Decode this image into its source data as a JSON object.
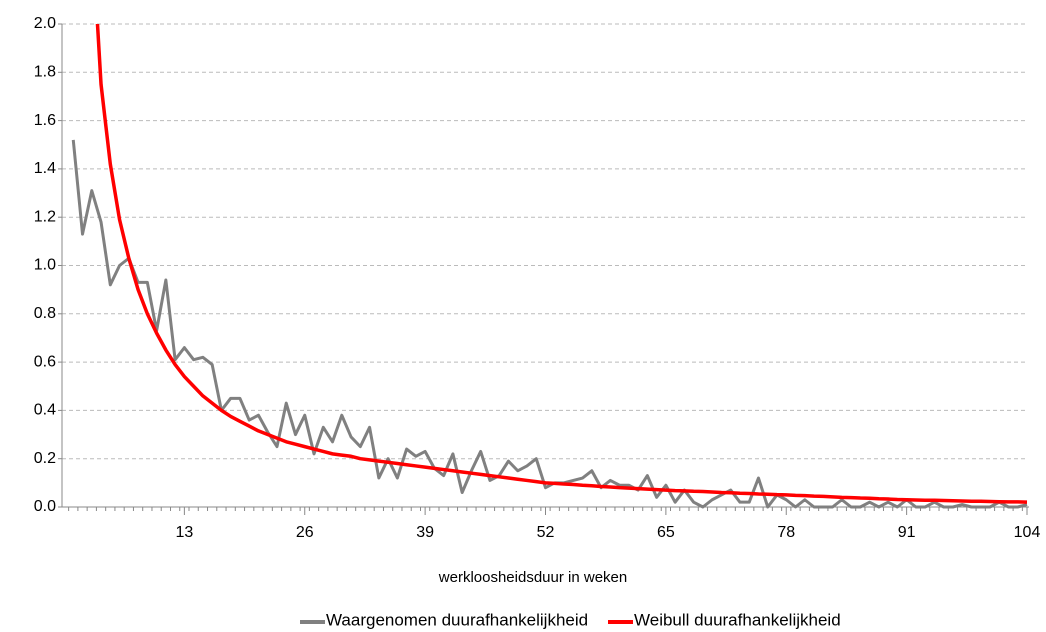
{
  "chart_data": {
    "type": "line",
    "xlabel": "werkloosheidsduur in weken",
    "x": [
      1,
      2,
      3,
      4,
      5,
      6,
      7,
      8,
      9,
      10,
      11,
      12,
      13,
      14,
      15,
      16,
      17,
      18,
      19,
      20,
      21,
      22,
      23,
      24,
      25,
      26,
      27,
      28,
      29,
      30,
      31,
      32,
      33,
      34,
      35,
      36,
      37,
      38,
      39,
      40,
      41,
      42,
      43,
      44,
      45,
      46,
      47,
      48,
      49,
      50,
      51,
      52,
      53,
      54,
      55,
      56,
      57,
      58,
      59,
      60,
      61,
      62,
      63,
      64,
      65,
      66,
      67,
      68,
      69,
      70,
      71,
      72,
      73,
      74,
      75,
      76,
      77,
      78,
      79,
      80,
      81,
      82,
      83,
      84,
      85,
      86,
      87,
      88,
      89,
      90,
      91,
      92,
      93,
      94,
      95,
      96,
      97,
      98,
      99,
      100,
      101,
      102,
      103,
      104
    ],
    "series": [
      {
        "name": "Waargenomen duurafhankelijkheid",
        "color": "#808080",
        "values": [
          1.52,
          1.13,
          1.31,
          1.18,
          0.92,
          1.0,
          1.03,
          0.93,
          0.93,
          0.73,
          0.94,
          0.61,
          0.66,
          0.61,
          0.62,
          0.59,
          0.4,
          0.45,
          0.45,
          0.36,
          0.38,
          0.31,
          0.25,
          0.43,
          0.3,
          0.38,
          0.22,
          0.33,
          0.27,
          0.38,
          0.29,
          0.25,
          0.33,
          0.12,
          0.2,
          0.12,
          0.24,
          0.21,
          0.23,
          0.16,
          0.13,
          0.22,
          0.06,
          0.15,
          0.23,
          0.11,
          0.13,
          0.19,
          0.15,
          0.17,
          0.2,
          0.08,
          0.1,
          0.1,
          0.11,
          0.12,
          0.15,
          0.08,
          0.11,
          0.09,
          0.09,
          0.07,
          0.13,
          0.04,
          0.09,
          0.02,
          0.07,
          0.02,
          0.0,
          0.03,
          0.05,
          0.07,
          0.02,
          0.02,
          0.12,
          0.0,
          0.05,
          0.03,
          0.0,
          0.03,
          0.0,
          0.0,
          0.0,
          0.03,
          0.0,
          0.0,
          0.02,
          0.0,
          0.02,
          0.0,
          0.03,
          0.0,
          0.0,
          0.02,
          0.0,
          0.0,
          0.01,
          0.0,
          0.0,
          0.0,
          0.02,
          0.0,
          0.0,
          0.01
        ]
      },
      {
        "name": "Weibull duurafhankelijkheid",
        "color": "#ff0000",
        "values": [
          null,
          null,
          2.4,
          1.75,
          1.42,
          1.19,
          1.03,
          0.9,
          0.8,
          0.72,
          0.65,
          0.59,
          0.54,
          0.5,
          0.46,
          0.43,
          0.4,
          0.375,
          0.355,
          0.335,
          0.315,
          0.3,
          0.285,
          0.27,
          0.26,
          0.25,
          0.24,
          0.23,
          0.22,
          0.215,
          0.21,
          0.2,
          0.195,
          0.19,
          0.185,
          0.18,
          0.175,
          0.17,
          0.165,
          0.16,
          0.155,
          0.15,
          0.145,
          0.14,
          0.135,
          0.13,
          0.125,
          0.12,
          0.115,
          0.11,
          0.105,
          0.1,
          0.098,
          0.095,
          0.093,
          0.09,
          0.088,
          0.085,
          0.083,
          0.08,
          0.078,
          0.076,
          0.074,
          0.072,
          0.07,
          0.068,
          0.067,
          0.065,
          0.064,
          0.062,
          0.06,
          0.059,
          0.057,
          0.056,
          0.054,
          0.053,
          0.051,
          0.05,
          0.048,
          0.047,
          0.045,
          0.044,
          0.042,
          0.04,
          0.039,
          0.037,
          0.036,
          0.034,
          0.033,
          0.031,
          0.03,
          0.029,
          0.028,
          0.028,
          0.027,
          0.026,
          0.025,
          0.024,
          0.024,
          0.023,
          0.022,
          0.021,
          0.021,
          0.02
        ]
      }
    ],
    "xlim": [
      0,
      104
    ],
    "xticks": [
      13,
      26,
      39,
      52,
      65,
      78,
      91,
      104
    ],
    "ylim": [
      0,
      2
    ],
    "yticks": [
      {
        "value": 0,
        "label": "0.0"
      },
      0.2,
      0.4,
      0.6,
      0.8,
      {
        "value": 1,
        "label": "1.0"
      },
      1.2,
      1.4,
      1.6,
      1.8,
      {
        "value": 2,
        "label": "2.0"
      }
    ],
    "grid": true,
    "legend": "bottom"
  }
}
